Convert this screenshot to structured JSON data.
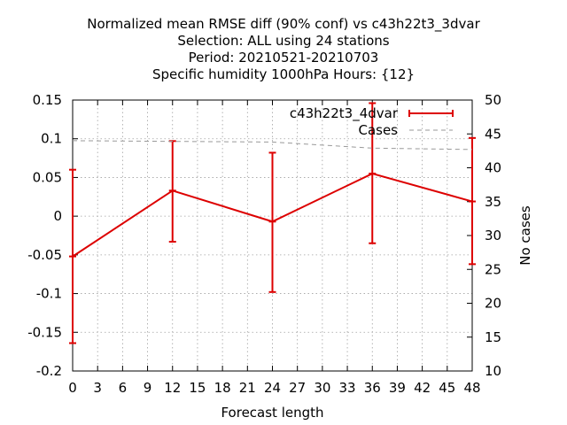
{
  "chart_data": {
    "type": "line",
    "title_lines": [
      "Normalized mean RMSE diff (90% conf) vs c43h22t3_3dvar",
      "Selection: ALL using    24 stations",
      "Period: 20210521-20210703",
      "Specific humidity 1000hPa   Hours: {12}"
    ],
    "xlabel": "Forecast length",
    "ylabel": "",
    "y2label": "No cases",
    "xlim": [
      0,
      48
    ],
    "ylim": [
      -0.2,
      0.15
    ],
    "y2lim": [
      10,
      50
    ],
    "xticks": [
      "0",
      "3",
      "6",
      "9",
      "12",
      "15",
      "18",
      "21",
      "24",
      "27",
      "30",
      "33",
      "36",
      "39",
      "42",
      "45",
      "48"
    ],
    "yticks": [
      "0.15",
      "0.1",
      "0.05",
      "0",
      "-0.05",
      "-0.1",
      "-0.15",
      "-0.2"
    ],
    "y2ticks": [
      "50",
      "45",
      "40",
      "35",
      "30",
      "25",
      "20",
      "15",
      "10"
    ],
    "grid": true,
    "legend_position": "top-right",
    "series": [
      {
        "name": "c43h22t3_4dvar",
        "color": "#dd0000",
        "style": "line-errorbars",
        "x": [
          0,
          12,
          24,
          36,
          48
        ],
        "y": [
          -0.052,
          0.033,
          -0.007,
          0.055,
          0.019
        ],
        "err_low": [
          -0.164,
          -0.033,
          -0.098,
          -0.035,
          -0.062
        ],
        "err_high": [
          0.06,
          0.097,
          0.082,
          0.146,
          0.101
        ]
      },
      {
        "name": "Cases",
        "color": "#999999",
        "style": "dashed",
        "axis": "y2",
        "x": [
          0,
          12,
          24,
          36,
          48
        ],
        "y": [
          44.0,
          43.9,
          43.8,
          42.9,
          42.7
        ]
      }
    ]
  }
}
